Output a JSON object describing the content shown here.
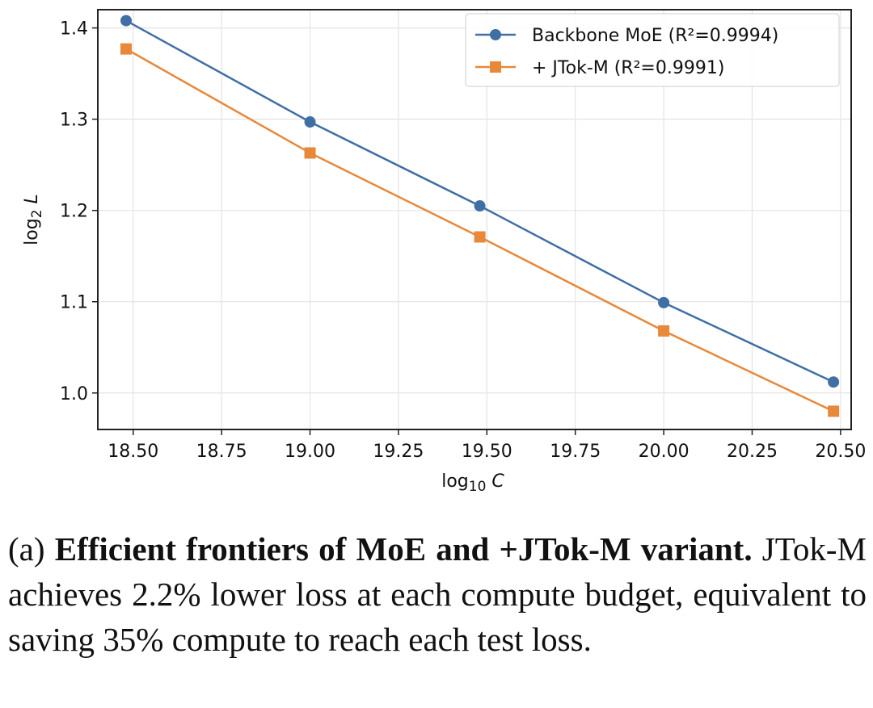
{
  "chart_data": {
    "type": "line",
    "xlabel": "log10 C",
    "ylabel": "log2 L",
    "xlim": [
      18.4,
      20.53
    ],
    "ylim": [
      0.96,
      1.42
    ],
    "xticks": [
      "18.50",
      "18.75",
      "19.00",
      "19.25",
      "19.50",
      "19.75",
      "20.00",
      "20.25",
      "20.50"
    ],
    "yticks": [
      "1.0",
      "1.1",
      "1.2",
      "1.3",
      "1.4"
    ],
    "grid": true,
    "legend_position": "top-right",
    "x": [
      18.48,
      19.0,
      19.48,
      20.0,
      20.48
    ],
    "series": [
      {
        "name": "Backbone MoE  (R²=0.9994)",
        "color": "#3f6fa5",
        "marker": "circle",
        "values": [
          1.408,
          1.297,
          1.205,
          1.099,
          1.012
        ]
      },
      {
        "name": "+ JTok-M  (R²=0.9991)",
        "color": "#e8883a",
        "marker": "square",
        "values": [
          1.377,
          1.263,
          1.171,
          1.068,
          0.98
        ]
      }
    ]
  },
  "caption": {
    "label": "(a)",
    "title": "Efficient frontiers of MoE and +JTok-M variant.",
    "body": "JTok-M achieves 2.2% lower loss at each compute budget, equivalent to saving 35% compute to reach each test loss."
  }
}
